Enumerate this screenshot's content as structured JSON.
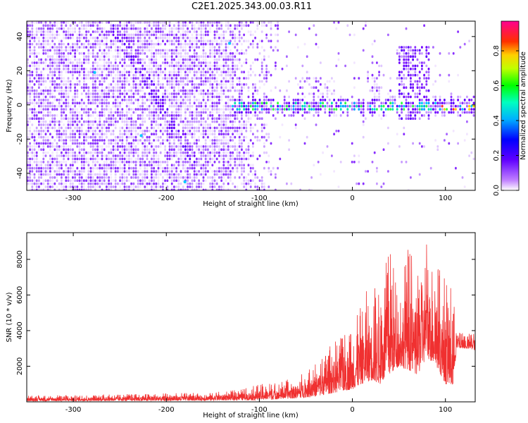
{
  "title": "C2E1.2025.343.00.03.R11",
  "chart_data": [
    {
      "type": "heatmap",
      "xlabel": "Height of straight line (km)",
      "ylabel": "Frequency (Hz)",
      "xlim": [
        -350,
        132
      ],
      "ylim": [
        -50,
        49
      ],
      "xticks": [
        -300,
        -200,
        -100,
        0,
        100
      ],
      "yticks": [
        -40,
        -20,
        0,
        20,
        40
      ],
      "colorbar": {
        "label": "Normalized spectral amplitude",
        "range": [
          0.0,
          0.97
        ],
        "ticks": [
          0.0,
          0.2,
          0.4,
          0.6,
          0.8
        ],
        "colormap": [
          "#ffffff",
          "#9a00ff",
          "#0000ff",
          "#00d0ff",
          "#00ff00",
          "#ffff00",
          "#ff0000",
          "#ff00ff"
        ]
      }
    },
    {
      "type": "line",
      "xlabel": "Height of straight line (km)",
      "ylabel": "SNR (10 * v/v)",
      "xlim": [
        -350,
        132
      ],
      "ylim": [
        0,
        9500
      ],
      "xticks": [
        -300,
        -200,
        -100,
        0,
        100
      ],
      "yticks": [
        2000,
        4000,
        6000,
        8000
      ],
      "color": "#f03030",
      "envelope": {
        "x": [
          -350,
          -300,
          -250,
          -200,
          -150,
          -120,
          -100,
          -80,
          -60,
          -40,
          -30,
          -20,
          -10,
          0,
          10,
          20,
          30,
          40,
          50,
          60,
          70,
          80,
          90,
          100,
          108,
          112,
          120,
          132
        ],
        "upper": [
          350,
          380,
          420,
          480,
          550,
          700,
          1000,
          1100,
          1400,
          2200,
          2800,
          3500,
          4000,
          4200,
          5500,
          7000,
          6000,
          9000,
          6000,
          9000,
          7000,
          9500,
          8000,
          7000,
          6500,
          3900,
          3900,
          3900
        ],
        "lower": [
          50,
          50,
          60,
          60,
          80,
          100,
          100,
          150,
          200,
          300,
          400,
          500,
          600,
          700,
          1000,
          1200,
          1000,
          1500,
          2000,
          1800,
          1500,
          2500,
          2000,
          1000,
          800,
          3000,
          3000,
          2900
        ]
      }
    }
  ]
}
